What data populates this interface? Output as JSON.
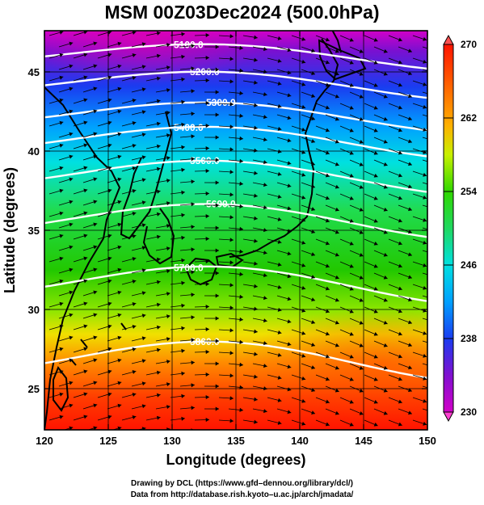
{
  "title": "MSM 00Z03Dec2024 (500.0hPa)",
  "xaxis": {
    "label": "Longitude (degrees)",
    "range": [
      120,
      150
    ],
    "ticks": [
      "120",
      "125",
      "130",
      "135",
      "140",
      "145",
      "150"
    ]
  },
  "yaxis": {
    "label": "Latitude  (degrees)",
    "range": [
      22.4,
      47.6
    ],
    "ticks": [
      "25",
      "30",
      "35",
      "40",
      "45"
    ]
  },
  "colorbar": {
    "range": [
      230,
      270
    ],
    "ticks": [
      "230",
      "238",
      "246",
      "254",
      "262",
      "270"
    ]
  },
  "contours": [
    {
      "label": "5100.0",
      "lat": 46.0
    },
    {
      "label": "5200.0",
      "lat": 44.2
    },
    {
      "label": "5300.0",
      "lat": 42.2
    },
    {
      "label": "5400.0",
      "lat": 40.6
    },
    {
      "label": "5500.0",
      "lat": 38.4
    },
    {
      "label": "5600.0",
      "lat": 35.6
    },
    {
      "label": "5700.0",
      "lat": 31.6
    },
    {
      "label": "5800.0",
      "lat": 26.8
    }
  ],
  "colors": {
    "cold": "#cc00cc",
    "warm": "#ff1a00",
    "contour": "#ffffff",
    "arrow": "#000000"
  },
  "credit": {
    "line1": "Drawing by DCL (https://www.gfd–dennou.org/library/dcl/)",
    "line2": "Data from http://database.rish.kyoto–u.ac.jp/arch/jmadata/"
  }
}
